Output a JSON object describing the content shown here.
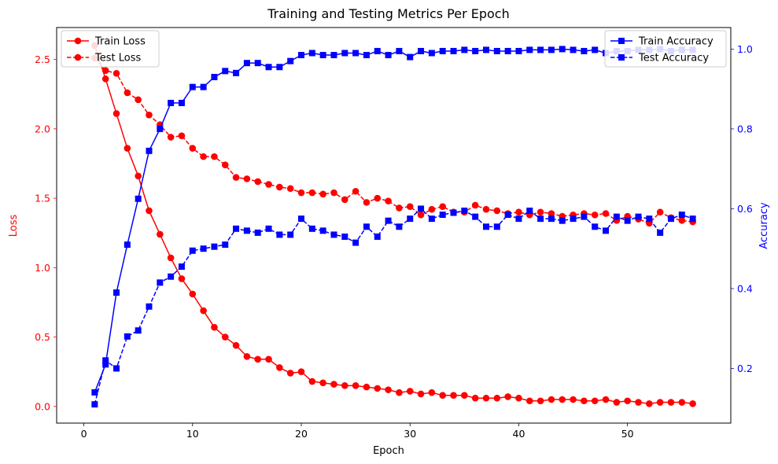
{
  "chart_data": {
    "type": "line",
    "title": "Training and Testing Metrics Per Epoch",
    "xlabel": "Epoch",
    "ylabel_left": "Loss",
    "ylabel_right": "Accuracy",
    "xlim": [
      -2.5,
      59.5
    ],
    "xticks": [
      0,
      10,
      20,
      30,
      40,
      50
    ],
    "ylim_left": [
      -0.12,
      2.73
    ],
    "yticks_left": [
      "0.0",
      "0.5",
      "1.0",
      "1.5",
      "2.0",
      "2.5"
    ],
    "ylim_right": [
      0.063,
      1.054
    ],
    "yticks_right": [
      "0.2",
      "0.4",
      "0.6",
      "0.8",
      "1.0"
    ],
    "grid": false,
    "colors": {
      "loss": "#ff0000",
      "accuracy": "#0000ff",
      "text": "#000000"
    },
    "legend_left": {
      "placement": "upper left",
      "entries": [
        "Train Loss",
        "Test Loss"
      ]
    },
    "legend_right": {
      "placement": "upper right",
      "entries": [
        "Train Accuracy",
        "Test Accuracy"
      ]
    },
    "x": [
      1,
      2,
      3,
      4,
      5,
      6,
      7,
      8,
      9,
      10,
      11,
      12,
      13,
      14,
      15,
      16,
      17,
      18,
      19,
      20,
      21,
      22,
      23,
      24,
      25,
      26,
      27,
      28,
      29,
      30,
      31,
      32,
      33,
      34,
      35,
      36,
      37,
      38,
      39,
      40,
      41,
      42,
      43,
      44,
      45,
      46,
      47,
      48,
      49,
      50,
      51,
      52,
      53,
      54,
      55,
      56
    ],
    "series": [
      {
        "name": "Train Loss",
        "axis": "left",
        "style": "solid",
        "marker": "circle",
        "values": [
          2.6,
          2.36,
          2.11,
          1.86,
          1.66,
          1.41,
          1.24,
          1.07,
          0.92,
          0.81,
          0.69,
          0.57,
          0.5,
          0.44,
          0.36,
          0.34,
          0.34,
          0.28,
          0.24,
          0.25,
          0.18,
          0.17,
          0.16,
          0.15,
          0.15,
          0.14,
          0.13,
          0.12,
          0.1,
          0.11,
          0.09,
          0.1,
          0.08,
          0.08,
          0.08,
          0.06,
          0.06,
          0.06,
          0.07,
          0.06,
          0.04,
          0.04,
          0.05,
          0.05,
          0.05,
          0.04,
          0.04,
          0.05,
          0.03,
          0.04,
          0.03,
          0.02,
          0.03,
          0.03,
          0.03,
          0.02
        ]
      },
      {
        "name": "Test Loss",
        "axis": "left",
        "style": "dashed",
        "marker": "circle",
        "values": [
          2.51,
          2.42,
          2.4,
          2.26,
          2.21,
          2.1,
          2.03,
          1.94,
          1.95,
          1.86,
          1.8,
          1.8,
          1.74,
          1.65,
          1.64,
          1.62,
          1.6,
          1.58,
          1.57,
          1.54,
          1.54,
          1.53,
          1.54,
          1.49,
          1.55,
          1.47,
          1.5,
          1.48,
          1.43,
          1.44,
          1.38,
          1.42,
          1.44,
          1.4,
          1.4,
          1.45,
          1.42,
          1.41,
          1.39,
          1.4,
          1.38,
          1.4,
          1.39,
          1.37,
          1.38,
          1.39,
          1.38,
          1.39,
          1.34,
          1.37,
          1.35,
          1.32,
          1.4,
          1.36,
          1.34,
          1.33
        ]
      },
      {
        "name": "Train Accuracy",
        "axis": "right",
        "style": "solid",
        "marker": "square",
        "values": [
          0.14,
          0.21,
          0.39,
          0.51,
          0.625,
          0.745,
          0.8,
          0.865,
          0.865,
          0.905,
          0.905,
          0.93,
          0.945,
          0.94,
          0.965,
          0.965,
          0.955,
          0.955,
          0.97,
          0.985,
          0.99,
          0.985,
          0.985,
          0.99,
          0.99,
          0.985,
          0.995,
          0.985,
          0.995,
          0.98,
          0.995,
          0.99,
          0.995,
          0.995,
          0.998,
          0.995,
          0.998,
          0.995,
          0.995,
          0.995,
          0.998,
          0.998,
          0.998,
          1.0,
          0.998,
          0.995,
          0.998,
          0.99,
          0.995,
          0.995,
          0.998,
          0.998,
          1.0,
          0.995,
          0.998,
          0.998
        ]
      },
      {
        "name": "Test Accuracy",
        "axis": "right",
        "style": "dashed",
        "marker": "square",
        "values": [
          0.11,
          0.22,
          0.2,
          0.28,
          0.295,
          0.355,
          0.415,
          0.43,
          0.455,
          0.495,
          0.5,
          0.505,
          0.51,
          0.55,
          0.545,
          0.54,
          0.55,
          0.535,
          0.535,
          0.575,
          0.55,
          0.545,
          0.535,
          0.53,
          0.515,
          0.555,
          0.53,
          0.57,
          0.555,
          0.575,
          0.6,
          0.575,
          0.585,
          0.59,
          0.595,
          0.58,
          0.555,
          0.555,
          0.585,
          0.575,
          0.595,
          0.575,
          0.575,
          0.57,
          0.575,
          0.58,
          0.555,
          0.545,
          0.58,
          0.57,
          0.58,
          0.575,
          0.54,
          0.575,
          0.585,
          0.575
        ]
      }
    ]
  }
}
